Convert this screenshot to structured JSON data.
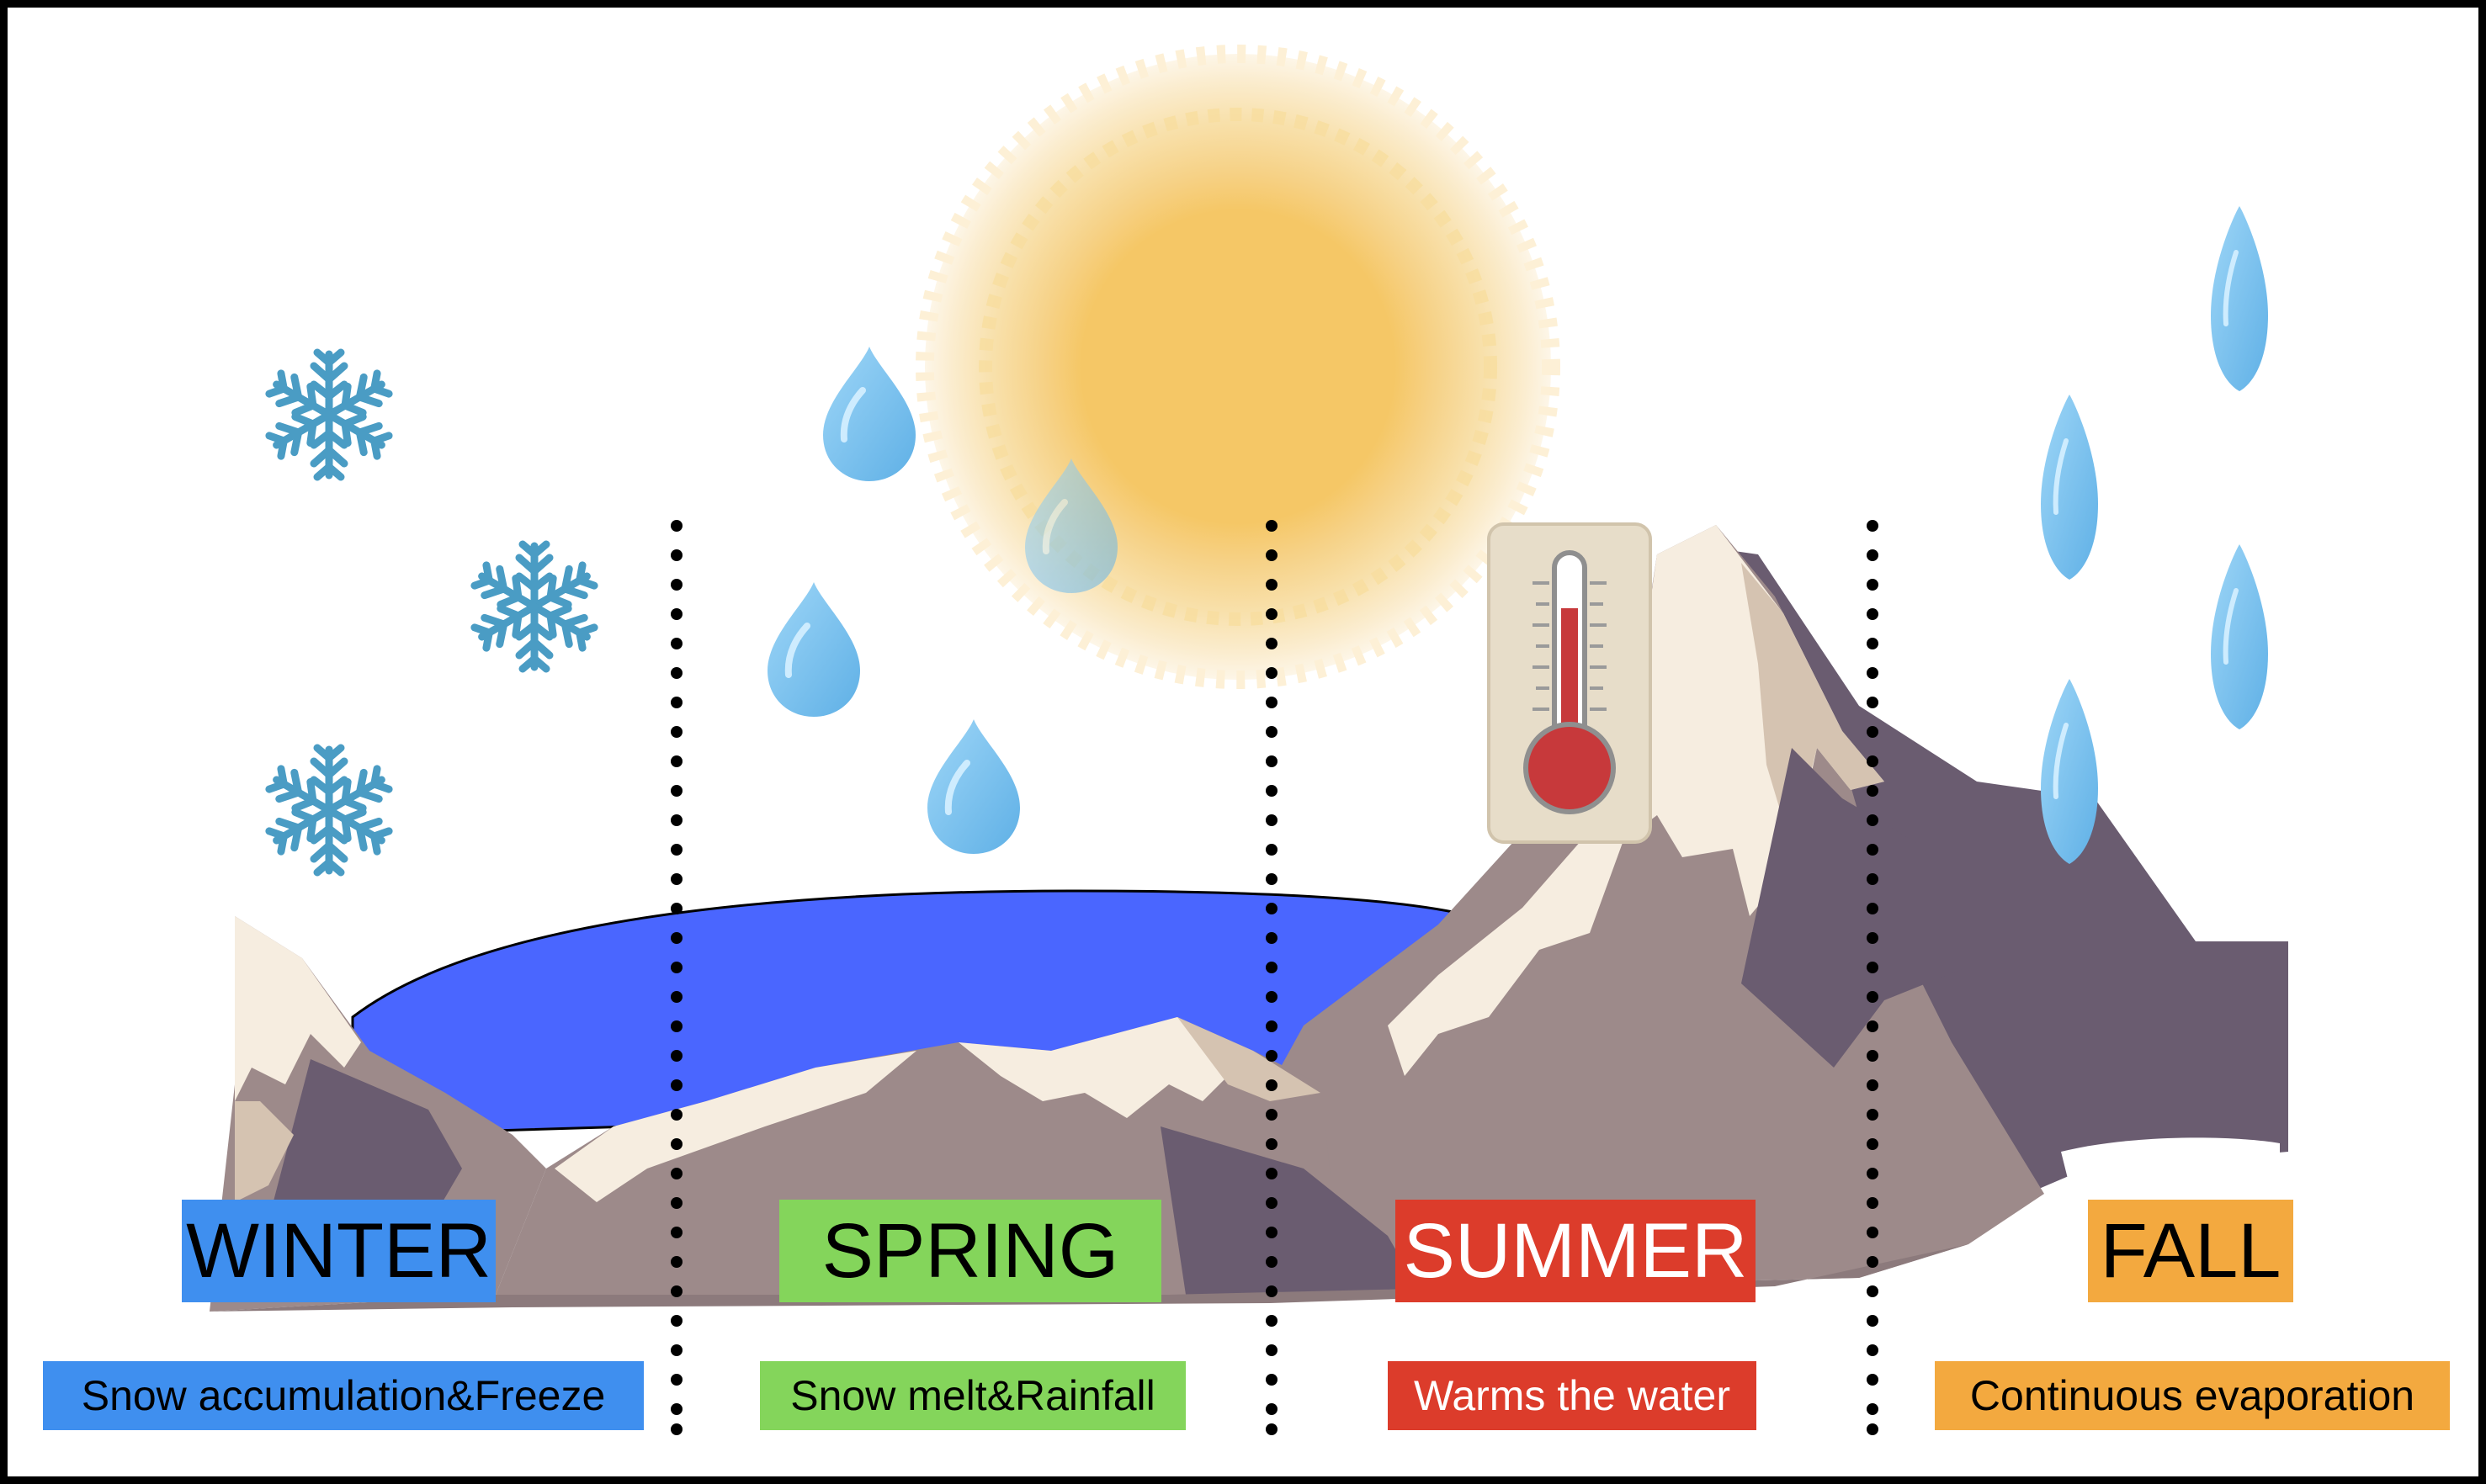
{
  "colors": {
    "winter": "#3f8fef",
    "spring": "#84d55b",
    "summer": "#dc3c2b",
    "fall": "#f3a93f",
    "lake": "#4a66ff",
    "mountain_mid": "#9d8a8a",
    "mountain_dark": "#6a5c70",
    "snow": "#f6ede0",
    "snow_shadow": "#d5c3b1",
    "sun_core": "#f5c766",
    "drop": "#7cc1ee",
    "snowflake": "#4a9cc4"
  },
  "seasons": [
    {
      "name": "WINTER",
      "description": "Snow accumulation&Freeze",
      "color": "#3f8fef"
    },
    {
      "name": "SPRING",
      "description": "Snow melt&Rainfall",
      "color": "#84d55b"
    },
    {
      "name": "SUMMER",
      "description": "Warms the water",
      "color": "#dc3c2b"
    },
    {
      "name": "FALL",
      "description": "Continuous evaporation",
      "color": "#f3a93f"
    }
  ],
  "icons": [
    "snowflake-icon",
    "raindrop-icon",
    "sun-icon",
    "thermometer-icon",
    "evaporation-drop-icon",
    "mountain-range",
    "lake"
  ]
}
